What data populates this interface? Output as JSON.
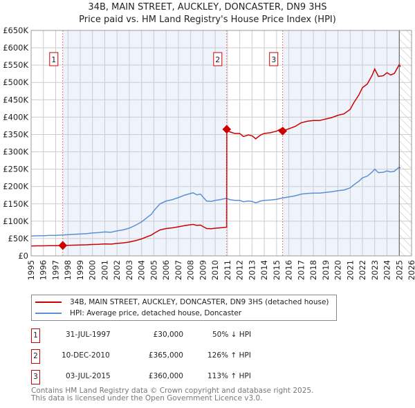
{
  "title_line1": "34B, MAIN STREET, AUCKLEY, DONCASTER, DN9 3HS",
  "title_line2": "Price paid vs. HM Land Registry's House Price Index (HPI)",
  "chart_data": {
    "type": "line",
    "xlim": [
      1995,
      2026
    ],
    "ylim": [
      0,
      650000
    ],
    "x_ticks": [
      "1995",
      "1996",
      "1997",
      "1998",
      "1999",
      "2000",
      "2001",
      "2002",
      "2003",
      "2004",
      "2005",
      "2006",
      "2007",
      "2008",
      "2009",
      "2010",
      "2011",
      "2012",
      "2013",
      "2014",
      "2015",
      "2016",
      "2017",
      "2018",
      "2019",
      "2020",
      "2021",
      "2022",
      "2023",
      "2024",
      "2025",
      "2026"
    ],
    "y_ticks": [
      {
        "v": 0,
        "label": "£0"
      },
      {
        "v": 50000,
        "label": "£50K"
      },
      {
        "v": 100000,
        "label": "£100K"
      },
      {
        "v": 150000,
        "label": "£150K"
      },
      {
        "v": 200000,
        "label": "£200K"
      },
      {
        "v": 250000,
        "label": "£250K"
      },
      {
        "v": 300000,
        "label": "£300K"
      },
      {
        "v": 350000,
        "label": "£350K"
      },
      {
        "v": 400000,
        "label": "£400K"
      },
      {
        "v": 450000,
        "label": "£450K"
      },
      {
        "v": 500000,
        "label": "£500K"
      },
      {
        "v": 550000,
        "label": "£550K"
      },
      {
        "v": 600000,
        "label": "£600K"
      },
      {
        "v": 650000,
        "label": "£650K"
      }
    ],
    "grid": true,
    "hatch_from": 2025.0,
    "series": [
      {
        "name": "34B, MAIN STREET, AUCKLEY, DONCASTER, DN9 3HS (detached house)",
        "color": "#cc0000",
        "derived_from_sales": true
      },
      {
        "name": "HPI: Average price, detached house, Doncaster",
        "color": "#5b8fd4",
        "x": [
          1995,
          1995.5,
          1996,
          1996.5,
          1997,
          1997.5,
          1998,
          1998.5,
          1999,
          1999.5,
          2000,
          2000.5,
          2001,
          2001.5,
          2002,
          2002.5,
          2003,
          2003.5,
          2004,
          2004.5,
          2004.8,
          2005,
          2005.5,
          2006,
          2006.5,
          2007,
          2007.5,
          2007.8,
          2008.2,
          2008.5,
          2008.8,
          2009,
          2009.3,
          2009.7,
          2010,
          2010.4,
          2010.9,
          2011.2,
          2011.6,
          2012,
          2012.3,
          2012.7,
          2013,
          2013.3,
          2013.7,
          2014,
          2014.5,
          2015,
          2015.5,
          2016,
          2016.5,
          2017,
          2017.5,
          2018,
          2018.5,
          2019,
          2019.5,
          2020,
          2020.5,
          2021,
          2021.3,
          2021.7,
          2022,
          2022.4,
          2022.8,
          2023.0,
          2023.3,
          2023.7,
          2024,
          2024.3,
          2024.6,
          2024.8,
          2025,
          2025.1
        ],
        "y": [
          57000,
          58000,
          58000,
          59000,
          59000,
          60000,
          61000,
          62000,
          63000,
          64000,
          66000,
          67000,
          69000,
          68000,
          72000,
          75000,
          80000,
          88000,
          98000,
          112000,
          120000,
          130000,
          150000,
          158000,
          162000,
          168000,
          175000,
          178000,
          182000,
          176000,
          178000,
          170000,
          158000,
          157000,
          160000,
          162000,
          166000,
          162000,
          160000,
          160000,
          156000,
          158000,
          157000,
          153000,
          158000,
          160000,
          161000,
          163000,
          167000,
          170000,
          173000,
          178000,
          180000,
          181000,
          181000,
          183000,
          185000,
          188000,
          190000,
          196000,
          205000,
          215000,
          225000,
          230000,
          242000,
          250000,
          240000,
          241000,
          245000,
          242000,
          244000,
          250000,
          256000,
          253000
        ]
      }
    ],
    "sales": [
      {
        "id": "1",
        "x": 1997.58,
        "date": "31-JUL-1997",
        "price": 30000,
        "price_label": "£30,000",
        "hpi_change": "50% ↓ HPI"
      },
      {
        "id": "2",
        "x": 2010.94,
        "date": "10-DEC-2010",
        "price": 365000,
        "price_label": "£365,000",
        "hpi_change": "126% ↑ HPI"
      },
      {
        "id": "3",
        "x": 2015.5,
        "date": "03-JUL-2015",
        "price": 360000,
        "price_label": "£360,000",
        "hpi_change": "113% ↑ HPI"
      }
    ]
  },
  "legend": {
    "property": "34B, MAIN STREET, AUCKLEY, DONCASTER, DN9 3HS (detached house)",
    "hpi": "HPI: Average price, detached house, Doncaster"
  },
  "footer": {
    "line1": "Contains HM Land Registry data © Crown copyright and database right 2025.",
    "line2": "This data is licensed under the Open Government Licence v3.0."
  }
}
